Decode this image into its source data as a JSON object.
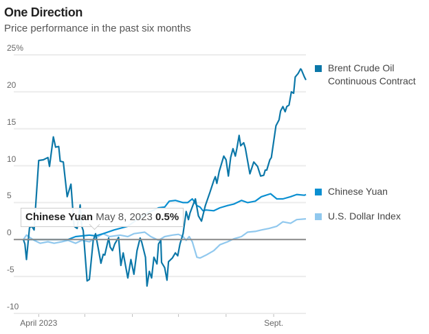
{
  "chart_data": {
    "type": "line",
    "title": "One Direction",
    "subtitle": "Price performance in the past six months",
    "xlabel": "",
    "ylabel": "",
    "x_unit": "days since April 1, 2023",
    "xlim": [
      -10,
      174
    ],
    "ylim": [
      -10,
      25
    ],
    "grid": true,
    "y_ticks": [
      {
        "value": 25,
        "label": "25%"
      },
      {
        "value": 20,
        "label": "20"
      },
      {
        "value": 15,
        "label": "15"
      },
      {
        "value": 10,
        "label": "10"
      },
      {
        "value": 5,
        "label": "5"
      },
      {
        "value": 0,
        "label": "0"
      },
      {
        "value": -5,
        "label": "-5"
      },
      {
        "value": -10,
        "label": "-10"
      }
    ],
    "x_ticks": [
      {
        "value": 0,
        "label": "April 2023"
      },
      {
        "value": 30,
        "label": ""
      },
      {
        "value": 61,
        "label": ""
      },
      {
        "value": 91,
        "label": ""
      },
      {
        "value": 122,
        "label": ""
      },
      {
        "value": 153,
        "label": "Sept."
      }
    ],
    "legend_placement": "right",
    "series": [
      {
        "name": "Brent Crude Oil Continuous Contract",
        "legend_lines": [
          "Brent Crude Oil",
          "Continuous Contract"
        ],
        "color": "#0b77a8",
        "points": [
          [
            -10,
            0
          ],
          [
            -9,
            -0.6
          ],
          [
            -8,
            -2.7
          ],
          [
            -6,
            1.6
          ],
          [
            -4.5,
            1.8
          ],
          [
            -3,
            1.3
          ],
          [
            -2,
            4.6
          ],
          [
            0,
            10.7
          ],
          [
            3,
            10.8
          ],
          [
            6,
            11.1
          ],
          [
            7,
            9.9
          ],
          [
            9.5,
            13.9
          ],
          [
            11,
            12.5
          ],
          [
            13,
            12.6
          ],
          [
            14,
            10.6
          ],
          [
            16,
            10.5
          ],
          [
            18.5,
            5.8
          ],
          [
            21,
            7.5
          ],
          [
            23,
            1.8
          ],
          [
            25,
            1.5
          ],
          [
            27,
            4.7
          ],
          [
            28,
            1.8
          ],
          [
            29,
            1.2
          ],
          [
            31.5,
            -5.6
          ],
          [
            33,
            -5.4
          ],
          [
            35.5,
            -0.1
          ],
          [
            37,
            0.8
          ],
          [
            39,
            -1.5
          ],
          [
            40.5,
            -3.2
          ],
          [
            42,
            -2
          ],
          [
            43,
            -2.1
          ],
          [
            45.5,
            0.2
          ],
          [
            46.5,
            -1
          ],
          [
            48,
            -1.5
          ],
          [
            49.5,
            -0.6
          ],
          [
            52,
            0.3
          ],
          [
            53.5,
            -3.5
          ],
          [
            55,
            -1.8
          ],
          [
            58,
            -5.2
          ],
          [
            60,
            -2.7
          ],
          [
            62,
            -4.7
          ],
          [
            64,
            -1.5
          ],
          [
            66,
            0.2
          ],
          [
            67,
            -0.3
          ],
          [
            69.5,
            -2.4
          ],
          [
            70.5,
            -6.3
          ],
          [
            72,
            -4.3
          ],
          [
            73.5,
            -5.2
          ],
          [
            75,
            -2.4
          ],
          [
            77,
            -3.3
          ],
          [
            78,
            -0.6
          ],
          [
            79.5,
            -0.1
          ],
          [
            80,
            -3.1
          ],
          [
            82,
            -3.8
          ],
          [
            83.5,
            -5.5
          ],
          [
            84.5,
            -3
          ],
          [
            87,
            -2.5
          ],
          [
            89,
            -1.8
          ],
          [
            90.5,
            -2.2
          ],
          [
            92,
            -0.6
          ],
          [
            94,
            0.8
          ],
          [
            96,
            3.8
          ],
          [
            97.5,
            2.7
          ],
          [
            98.5,
            3.6
          ],
          [
            100.5,
            4.7
          ],
          [
            102,
            5.5
          ],
          [
            104,
            3.2
          ],
          [
            106,
            2.5
          ],
          [
            108.5,
            4.6
          ],
          [
            111.5,
            6.4
          ],
          [
            114,
            8
          ],
          [
            115,
            8.5
          ],
          [
            116,
            7.6
          ],
          [
            117.5,
            9.2
          ],
          [
            120.5,
            11.3
          ],
          [
            122,
            10.8
          ],
          [
            123.5,
            8.6
          ],
          [
            125,
            11.1
          ],
          [
            126.5,
            12.3
          ],
          [
            128,
            11.3
          ],
          [
            129,
            12.3
          ],
          [
            130.5,
            14.1
          ],
          [
            131.5,
            12.7
          ],
          [
            133.5,
            13.1
          ],
          [
            134.5,
            12.4
          ],
          [
            137.5,
            8.9
          ],
          [
            140,
            10.5
          ],
          [
            142.5,
            9.9
          ],
          [
            144.5,
            8.6
          ],
          [
            146.5,
            8.7
          ],
          [
            147.5,
            9.4
          ],
          [
            148.5,
            9.4
          ],
          [
            150.5,
            10.8
          ],
          [
            151.5,
            11.1
          ],
          [
            154.5,
            15.4
          ],
          [
            156.5,
            16.2
          ],
          [
            157.5,
            17.4
          ],
          [
            159,
            18
          ],
          [
            160.5,
            17.3
          ],
          [
            161.5,
            18
          ],
          [
            163,
            18.2
          ],
          [
            164.5,
            20
          ],
          [
            166,
            19.8
          ],
          [
            167,
            22
          ],
          [
            169,
            22.5
          ],
          [
            170.5,
            23.1
          ],
          [
            171,
            23
          ],
          [
            173,
            22
          ],
          [
            174,
            21.6
          ]
        ]
      },
      {
        "name": "Chinese Yuan",
        "legend_lines": [
          "Chinese Yuan"
        ],
        "color": "#0a8fd1",
        "points": [
          [
            -10,
            0
          ],
          [
            19,
            0
          ],
          [
            24,
            0.4
          ],
          [
            33,
            0.6
          ],
          [
            37,
            0.5
          ],
          [
            42,
            0.8
          ],
          [
            49,
            1.3
          ],
          [
            58,
            1.8
          ],
          [
            64,
            2.7
          ],
          [
            71,
            3.6
          ],
          [
            78,
            4.3
          ],
          [
            82,
            4.4
          ],
          [
            85,
            5.2
          ],
          [
            89,
            5.3
          ],
          [
            94,
            5.0
          ],
          [
            97,
            5.0
          ],
          [
            100,
            5.5
          ],
          [
            103,
            4.6
          ],
          [
            105,
            4.4
          ],
          [
            107,
            3.9
          ],
          [
            109,
            4.0
          ],
          [
            114,
            3.9
          ],
          [
            118,
            4.3
          ],
          [
            123,
            4.6
          ],
          [
            127,
            4.8
          ],
          [
            132,
            5.3
          ],
          [
            136,
            5.0
          ],
          [
            141,
            5.2
          ],
          [
            145,
            5.8
          ],
          [
            151,
            6.2
          ],
          [
            155,
            5.5
          ],
          [
            159,
            5.5
          ],
          [
            164,
            5.8
          ],
          [
            168,
            6.1
          ],
          [
            173,
            6.0
          ],
          [
            174,
            6.1
          ]
        ]
      },
      {
        "name": "U.S. Dollar Index",
        "legend_lines": [
          "U.S. Dollar Index"
        ],
        "color": "#90c8ee",
        "points": [
          [
            -10,
            0
          ],
          [
            -8,
            0.6
          ],
          [
            -3,
            -0.1
          ],
          [
            1,
            -0.5
          ],
          [
            6,
            -0.3
          ],
          [
            10,
            -0.5
          ],
          [
            15,
            -0.3
          ],
          [
            19,
            -0.1
          ],
          [
            24,
            -0.5
          ],
          [
            28,
            -0.1
          ],
          [
            33,
            -0.3
          ],
          [
            37,
            0.2
          ],
          [
            42,
            0.8
          ],
          [
            46,
            0.4
          ],
          [
            53,
            0.6
          ],
          [
            58,
            0.4
          ],
          [
            62,
            0.8
          ],
          [
            69,
            1.0
          ],
          [
            73,
            0.4
          ],
          [
            78,
            -0.1
          ],
          [
            82,
            0.4
          ],
          [
            87,
            0.6
          ],
          [
            91,
            0.7
          ],
          [
            94,
            0.4
          ],
          [
            96,
            -0.1
          ],
          [
            98,
            0.4
          ],
          [
            100,
            -0.3
          ],
          [
            103,
            -2.4
          ],
          [
            105,
            -2.5
          ],
          [
            109,
            -2.1
          ],
          [
            114,
            -1.5
          ],
          [
            118,
            -0.7
          ],
          [
            123,
            -0.3
          ],
          [
            127,
            0.1
          ],
          [
            132,
            0.4
          ],
          [
            136,
            1.0
          ],
          [
            141,
            1.1
          ],
          [
            145,
            1.3
          ],
          [
            150,
            1.5
          ],
          [
            155,
            1.8
          ],
          [
            159,
            2.4
          ],
          [
            164,
            2.2
          ],
          [
            168,
            2.7
          ],
          [
            174,
            2.8
          ]
        ]
      }
    ],
    "annotations": [
      {
        "type": "tooltip",
        "series": "Chinese Yuan",
        "date": "May 8, 2023",
        "value": "0.5%"
      }
    ]
  },
  "tooltip": {
    "series": "Chinese Yuan",
    "date": "May 8, 2023",
    "value": "0.5%"
  }
}
